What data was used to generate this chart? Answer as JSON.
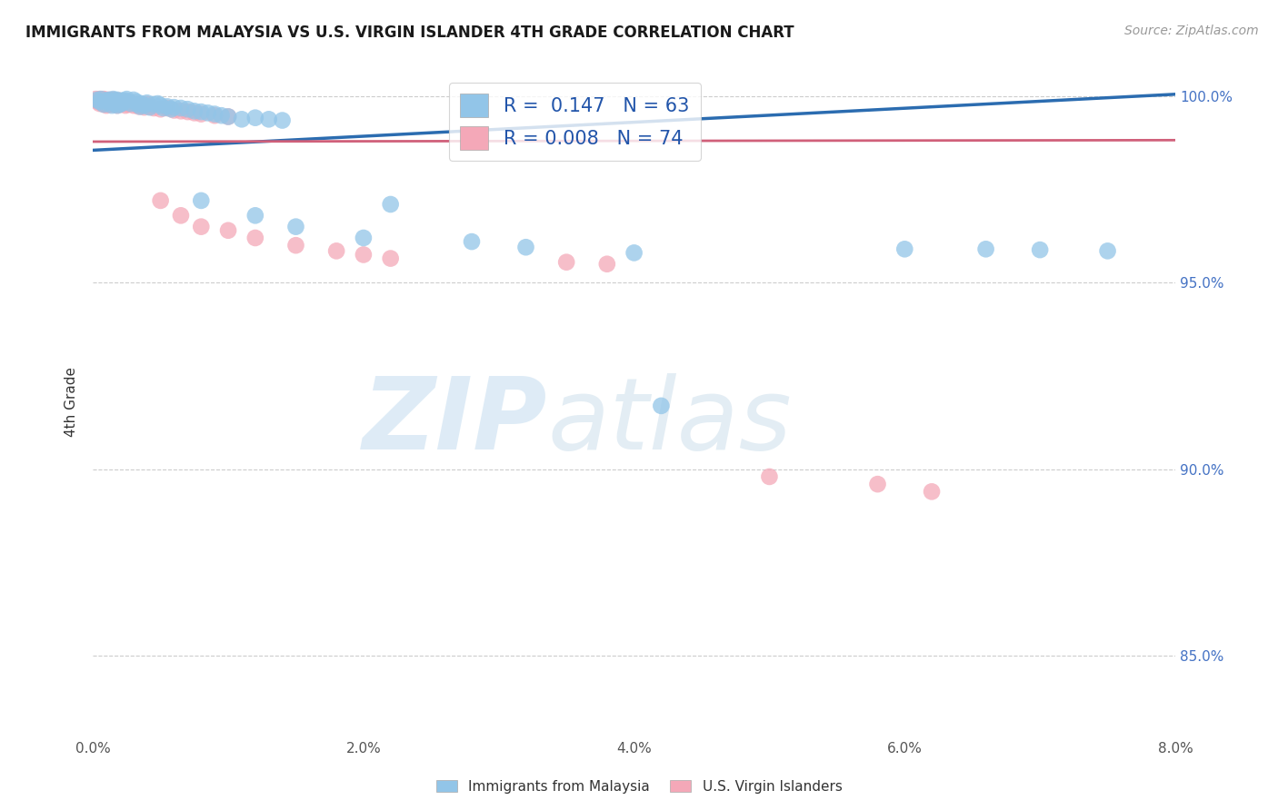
{
  "title": "IMMIGRANTS FROM MALAYSIA VS U.S. VIRGIN ISLANDER 4TH GRADE CORRELATION CHART",
  "source": "Source: ZipAtlas.com",
  "ylabel": "4th Grade",
  "xlim": [
    0.0,
    0.08
  ],
  "ylim": [
    0.828,
    1.008
  ],
  "yticks_right": [
    0.85,
    0.9,
    0.95,
    1.0
  ],
  "ytick_labels_right": [
    "85.0%",
    "90.0%",
    "95.0%",
    "100.0%"
  ],
  "xticks": [
    0.0,
    0.01,
    0.02,
    0.03,
    0.04,
    0.05,
    0.06,
    0.07,
    0.08
  ],
  "xtick_labels": [
    "0.0%",
    "",
    "2.0%",
    "",
    "4.0%",
    "",
    "6.0%",
    "",
    "8.0%"
  ],
  "legend_r_blue": "0.147",
  "legend_n_blue": "63",
  "legend_r_pink": "0.008",
  "legend_n_pink": "74",
  "blue_color": "#92C5E8",
  "pink_color": "#F4A8B8",
  "blue_line_color": "#2B6CB0",
  "pink_line_color": "#D0607A",
  "blue_line_x0": 0.0,
  "blue_line_y0": 0.9855,
  "blue_line_x1": 0.08,
  "blue_line_y1": 1.0005,
  "pink_line_x0": 0.0,
  "pink_line_y0": 0.9878,
  "pink_line_x1": 0.08,
  "pink_line_y1": 0.9882,
  "blue_dots": [
    [
      0.0003,
      0.999
    ],
    [
      0.0005,
      0.9985
    ],
    [
      0.0006,
      0.9992
    ],
    [
      0.0008,
      0.9978
    ],
    [
      0.001,
      0.9988
    ],
    [
      0.001,
      0.9982
    ],
    [
      0.0012,
      0.999
    ],
    [
      0.0013,
      0.9985
    ],
    [
      0.0014,
      0.9975
    ],
    [
      0.0015,
      0.9992
    ],
    [
      0.0015,
      0.998
    ],
    [
      0.0016,
      0.9988
    ],
    [
      0.0017,
      0.9982
    ],
    [
      0.0018,
      0.9975
    ],
    [
      0.0018,
      0.999
    ],
    [
      0.002,
      0.9985
    ],
    [
      0.002,
      0.9978
    ],
    [
      0.0022,
      0.9988
    ],
    [
      0.0022,
      0.9982
    ],
    [
      0.0024,
      0.9988
    ],
    [
      0.0025,
      0.9992
    ],
    [
      0.0026,
      0.9985
    ],
    [
      0.0028,
      0.998
    ],
    [
      0.003,
      0.999
    ],
    [
      0.0032,
      0.9985
    ],
    [
      0.0033,
      0.9978
    ],
    [
      0.0035,
      0.9972
    ],
    [
      0.0036,
      0.998
    ],
    [
      0.0038,
      0.9975
    ],
    [
      0.004,
      0.9982
    ],
    [
      0.0042,
      0.997
    ],
    [
      0.0045,
      0.9978
    ],
    [
      0.0048,
      0.998
    ],
    [
      0.005,
      0.9975
    ],
    [
      0.0052,
      0.9968
    ],
    [
      0.0055,
      0.9972
    ],
    [
      0.0058,
      0.9965
    ],
    [
      0.006,
      0.997
    ],
    [
      0.0065,
      0.9968
    ],
    [
      0.007,
      0.9965
    ],
    [
      0.0075,
      0.996
    ],
    [
      0.008,
      0.9958
    ],
    [
      0.0085,
      0.9955
    ],
    [
      0.009,
      0.9952
    ],
    [
      0.0095,
      0.9948
    ],
    [
      0.01,
      0.9945
    ],
    [
      0.011,
      0.9938
    ],
    [
      0.012,
      0.9942
    ],
    [
      0.013,
      0.9938
    ],
    [
      0.014,
      0.9935
    ],
    [
      0.008,
      0.972
    ],
    [
      0.012,
      0.968
    ],
    [
      0.015,
      0.965
    ],
    [
      0.02,
      0.962
    ],
    [
      0.022,
      0.971
    ],
    [
      0.028,
      0.961
    ],
    [
      0.032,
      0.9595
    ],
    [
      0.04,
      0.958
    ],
    [
      0.042,
      0.917
    ],
    [
      0.06,
      0.959
    ],
    [
      0.066,
      0.959
    ],
    [
      0.07,
      0.9588
    ],
    [
      0.075,
      0.9585
    ]
  ],
  "pink_dots": [
    [
      0.0002,
      0.9992
    ],
    [
      0.0003,
      0.9988
    ],
    [
      0.0004,
      0.9985
    ],
    [
      0.0005,
      0.9992
    ],
    [
      0.0005,
      0.998
    ],
    [
      0.0006,
      0.999
    ],
    [
      0.0006,
      0.9985
    ],
    [
      0.0007,
      0.9988
    ],
    [
      0.0007,
      0.9982
    ],
    [
      0.0008,
      0.9992
    ],
    [
      0.0008,
      0.9985
    ],
    [
      0.0008,
      0.9978
    ],
    [
      0.0009,
      0.999
    ],
    [
      0.0009,
      0.9982
    ],
    [
      0.001,
      0.9988
    ],
    [
      0.001,
      0.998
    ],
    [
      0.001,
      0.9975
    ],
    [
      0.0011,
      0.9985
    ],
    [
      0.0011,
      0.9978
    ],
    [
      0.0012,
      0.999
    ],
    [
      0.0012,
      0.9982
    ],
    [
      0.0013,
      0.9988
    ],
    [
      0.0013,
      0.998
    ],
    [
      0.0014,
      0.9985
    ],
    [
      0.0014,
      0.9978
    ],
    [
      0.0015,
      0.999
    ],
    [
      0.0015,
      0.9982
    ],
    [
      0.0016,
      0.9988
    ],
    [
      0.0016,
      0.998
    ],
    [
      0.0017,
      0.9985
    ],
    [
      0.0018,
      0.9982
    ],
    [
      0.0018,
      0.9975
    ],
    [
      0.0019,
      0.9988
    ],
    [
      0.002,
      0.9985
    ],
    [
      0.002,
      0.9978
    ],
    [
      0.0021,
      0.998
    ],
    [
      0.0022,
      0.9985
    ],
    [
      0.0023,
      0.998
    ],
    [
      0.0024,
      0.9975
    ],
    [
      0.0025,
      0.9982
    ],
    [
      0.0026,
      0.9978
    ],
    [
      0.0028,
      0.9982
    ],
    [
      0.003,
      0.9975
    ],
    [
      0.0032,
      0.9978
    ],
    [
      0.0034,
      0.9972
    ],
    [
      0.0036,
      0.9975
    ],
    [
      0.0038,
      0.997
    ],
    [
      0.004,
      0.9978
    ],
    [
      0.0042,
      0.9972
    ],
    [
      0.0045,
      0.9968
    ],
    [
      0.005,
      0.9965
    ],
    [
      0.0055,
      0.9968
    ],
    [
      0.006,
      0.9962
    ],
    [
      0.0065,
      0.996
    ],
    [
      0.007,
      0.9958
    ],
    [
      0.0075,
      0.9955
    ],
    [
      0.008,
      0.9952
    ],
    [
      0.009,
      0.9948
    ],
    [
      0.01,
      0.9945
    ],
    [
      0.005,
      0.972
    ],
    [
      0.0065,
      0.968
    ],
    [
      0.008,
      0.965
    ],
    [
      0.01,
      0.964
    ],
    [
      0.012,
      0.962
    ],
    [
      0.015,
      0.96
    ],
    [
      0.018,
      0.9585
    ],
    [
      0.02,
      0.9575
    ],
    [
      0.022,
      0.9565
    ],
    [
      0.035,
      0.9555
    ],
    [
      0.038,
      0.955
    ],
    [
      0.05,
      0.898
    ],
    [
      0.058,
      0.896
    ],
    [
      0.062,
      0.894
    ]
  ]
}
